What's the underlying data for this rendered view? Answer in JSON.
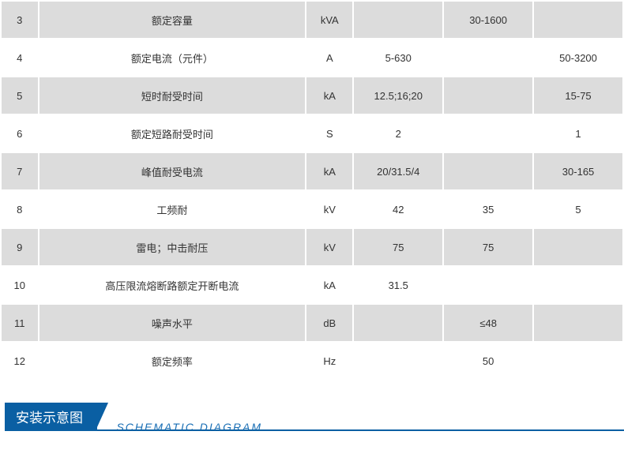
{
  "table": {
    "cols": [
      "idx",
      "name",
      "unit",
      "v1",
      "v2",
      "v3"
    ],
    "colClasses": [
      "col-idx",
      "col-name",
      "col-unit",
      "col-v1",
      "col-v2",
      "col-v3"
    ],
    "rows": [
      {
        "zebra": "odd",
        "idx": "3",
        "name": "额定容量",
        "unit": "kVA",
        "v1": "",
        "v2": "30-1600",
        "v3": ""
      },
      {
        "zebra": "even",
        "idx": "4",
        "name": "额定电流（元件）",
        "unit": "A",
        "v1": "5-630",
        "v2": "",
        "v3": "50-3200"
      },
      {
        "zebra": "odd",
        "idx": "5",
        "name": "短时耐受时间",
        "unit": "kA",
        "v1": "12.5;16;20",
        "v2": "",
        "v3": "15-75"
      },
      {
        "zebra": "even",
        "idx": "6",
        "name": "额定短路耐受时间",
        "unit": "S",
        "v1": "2",
        "v2": "",
        "v3": "1"
      },
      {
        "zebra": "odd",
        "idx": "7",
        "name": "峰值耐受电流",
        "unit": "kA",
        "v1": "20/31.5/4",
        "v2": "",
        "v3": "30-165"
      },
      {
        "zebra": "even",
        "idx": "8",
        "name": "工频耐",
        "unit": "kV",
        "v1": "42",
        "v2": "35",
        "v3": "5"
      },
      {
        "zebra": "odd",
        "idx": "9",
        "name": "雷电；中击耐压",
        "unit": "kV",
        "v1": "75",
        "v2": "75",
        "v3": ""
      },
      {
        "zebra": "even",
        "idx": "10",
        "name": "高压限流熔断路额定开断电流",
        "unit": "kA",
        "v1": "31.5",
        "v2": "",
        "v3": ""
      },
      {
        "zebra": "odd",
        "idx": "11",
        "name": "噪声水平",
        "unit": "dB",
        "v1": "",
        "v2": "≤48",
        "v3": ""
      },
      {
        "zebra": "even",
        "idx": "12",
        "name": "额定频率",
        "unit": "Hz",
        "v1": "",
        "v2": "50",
        "v3": ""
      }
    ]
  },
  "section": {
    "title": "安装示意图",
    "subtitle": "SCHEMATIC DIAGRAM"
  },
  "colors": {
    "odd_bg": "#dcdcdc",
    "even_bg": "#ffffff",
    "accent": "#0a5fa3",
    "subtitle": "#1a6fb5",
    "text": "#333333"
  }
}
